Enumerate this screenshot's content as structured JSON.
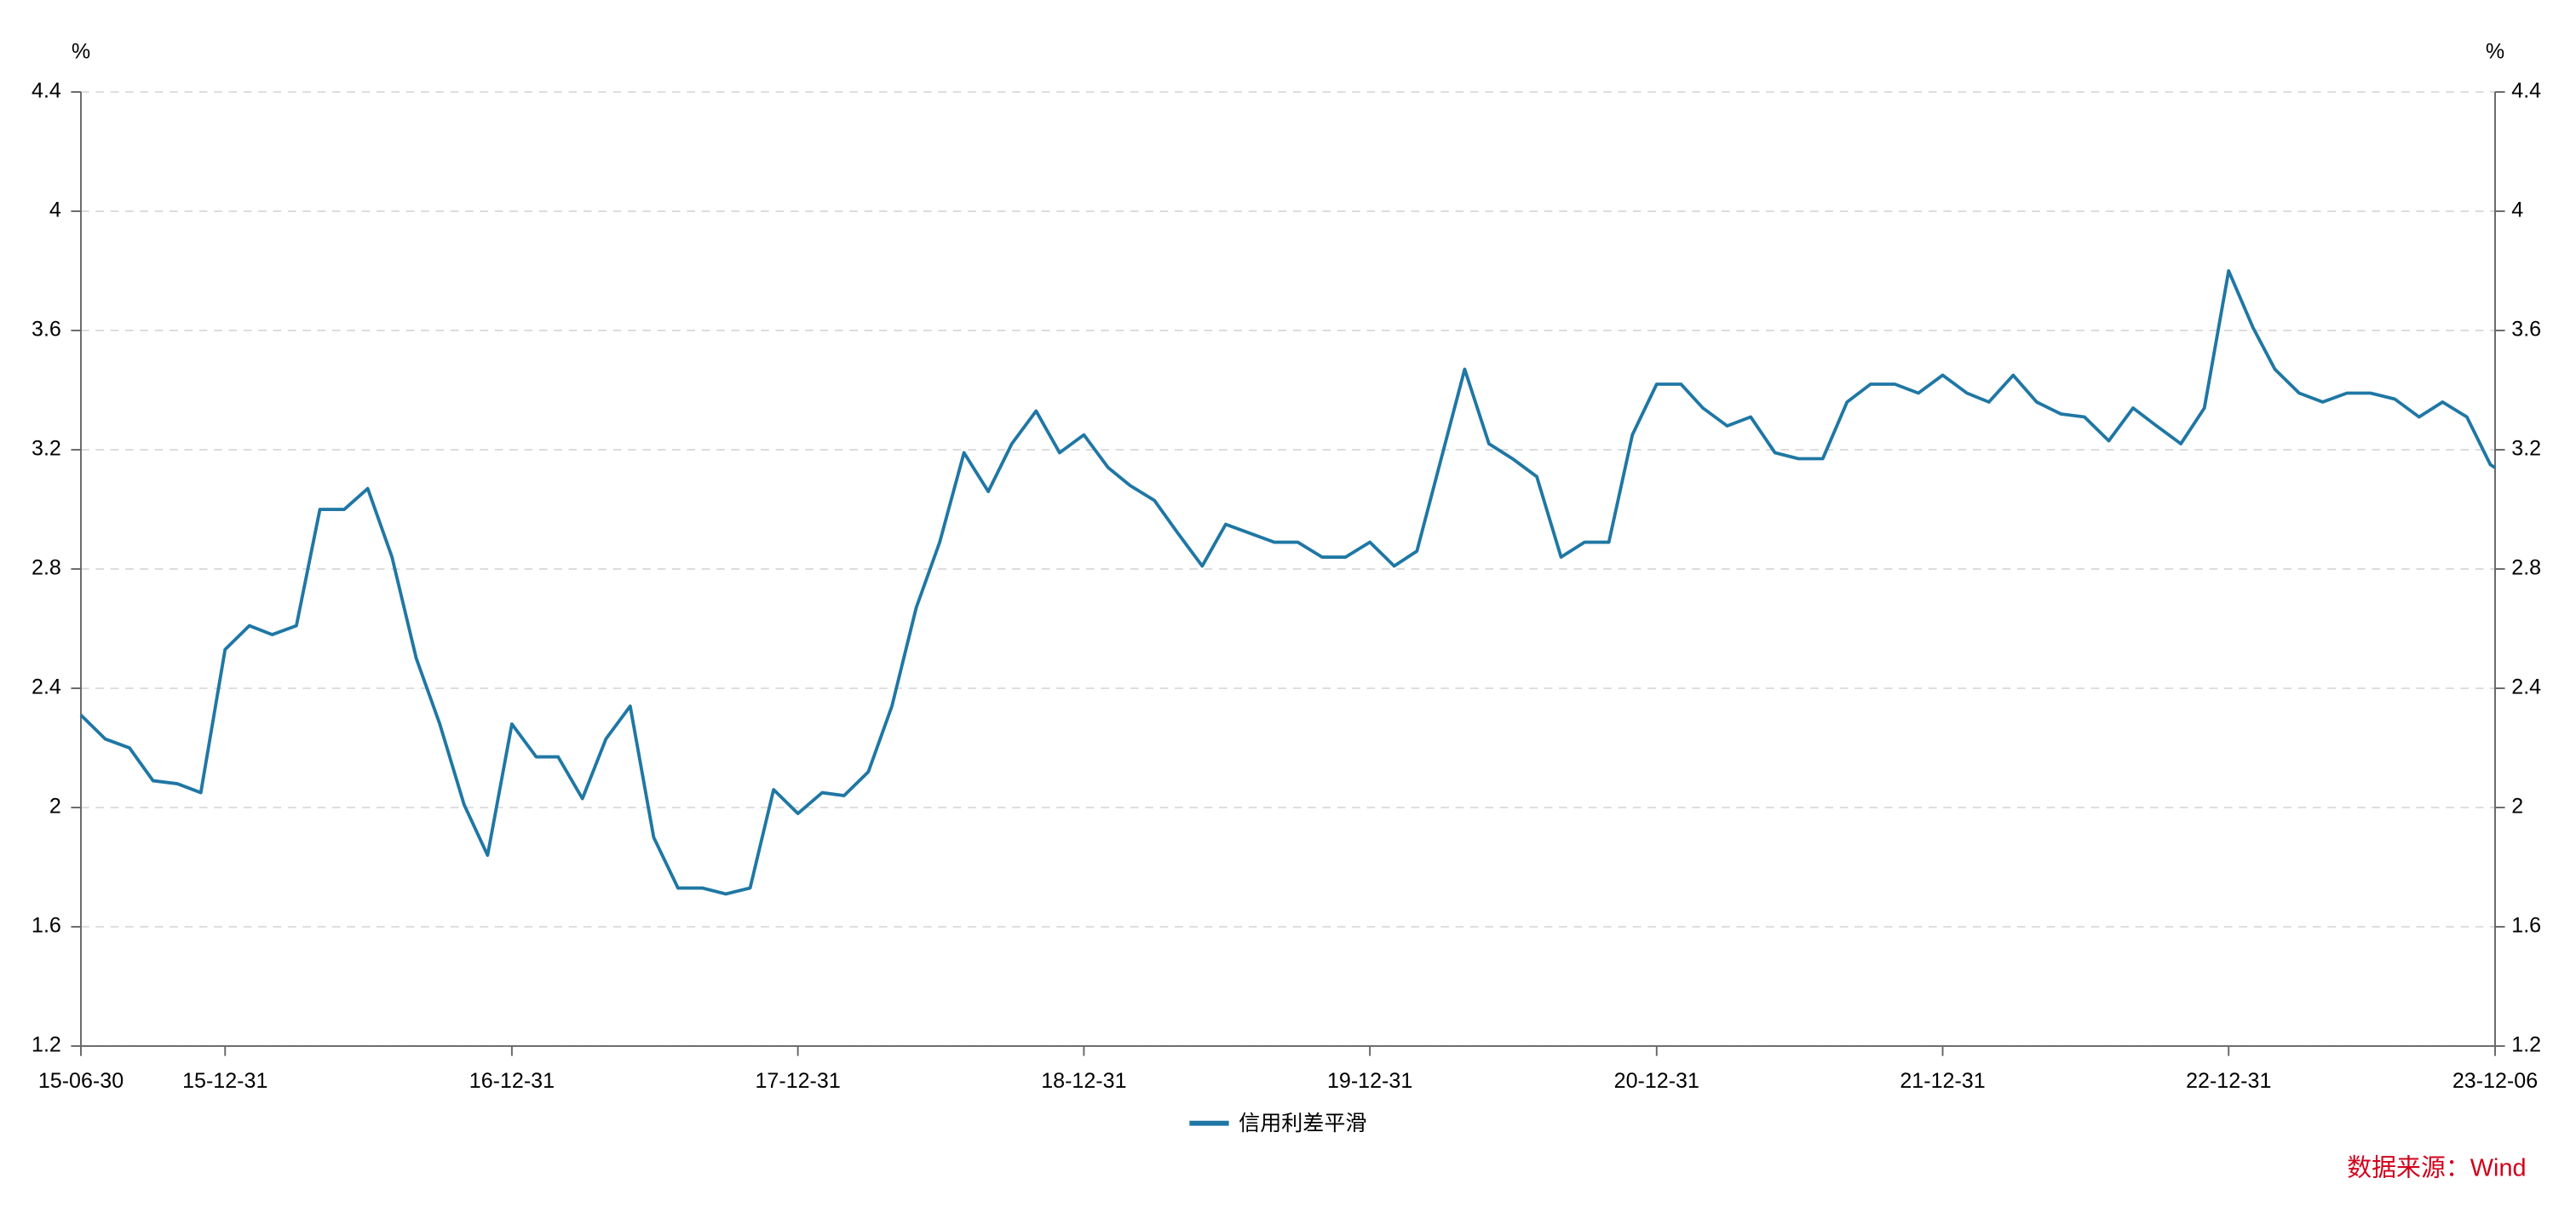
{
  "chart_data": {
    "type": "line",
    "y_unit": "%",
    "y2_unit": "%",
    "source": "数据来源：Wind",
    "xlim": [
      "15-06-30",
      "23-12-06"
    ],
    "xticks": [
      "15-06-30",
      "15-12-31",
      "16-12-31",
      "17-12-31",
      "18-12-31",
      "19-12-31",
      "20-12-31",
      "21-12-31",
      "22-12-31",
      "23-12-06"
    ],
    "ylim": [
      1.2,
      4.4
    ],
    "yticks": [
      1.2,
      1.6,
      2,
      2.4,
      2.8,
      3.2,
      3.6,
      4,
      4.4
    ],
    "y2lim": [
      1.2,
      4.4
    ],
    "y2ticks": [
      1.2,
      1.6,
      2,
      2.4,
      2.8,
      3.2,
      3.6,
      4,
      4.4
    ],
    "grid": true,
    "legend": "bottom",
    "x": [
      "15-06-30",
      "15-07-31",
      "15-08-31",
      "15-09-30",
      "15-10-31",
      "15-11-30",
      "15-12-31",
      "16-01-31",
      "16-02-29",
      "16-03-31",
      "16-04-30",
      "16-05-31",
      "16-06-30",
      "16-07-31",
      "16-08-31",
      "16-09-30",
      "16-10-31",
      "16-11-30",
      "16-12-31",
      "17-01-31",
      "17-02-28",
      "17-03-31",
      "17-04-30",
      "17-05-31",
      "17-06-30",
      "17-07-31",
      "17-08-31",
      "17-09-30",
      "17-10-31",
      "17-11-30",
      "17-12-31",
      "18-01-31",
      "18-02-28",
      "18-03-31",
      "18-04-30",
      "18-05-31",
      "18-06-30",
      "18-07-31",
      "18-08-31",
      "18-09-30",
      "18-10-31",
      "18-11-30",
      "18-12-31",
      "19-01-31",
      "19-02-28",
      "19-03-31",
      "19-04-30",
      "19-05-31",
      "19-06-30",
      "19-07-31",
      "19-08-31",
      "19-09-30",
      "19-10-31",
      "19-11-30",
      "19-12-31",
      "20-01-31",
      "20-02-29",
      "20-03-31",
      "20-04-30",
      "20-05-31",
      "20-06-30",
      "20-07-31",
      "20-08-31",
      "20-09-30",
      "20-10-31",
      "20-11-30",
      "20-12-31",
      "21-01-31",
      "21-02-28",
      "21-03-31",
      "21-04-30",
      "21-05-31",
      "21-06-30",
      "21-07-31",
      "21-08-31",
      "21-09-30",
      "21-10-31",
      "21-11-30",
      "21-12-31",
      "22-01-31",
      "22-02-28",
      "22-03-31",
      "22-04-30",
      "22-05-31",
      "22-06-30",
      "22-07-31",
      "22-08-31",
      "22-09-30",
      "22-10-31",
      "22-11-30",
      "22-12-31",
      "23-01-31",
      "23-02-28",
      "23-03-31",
      "23-04-30",
      "23-05-31",
      "23-06-30",
      "23-07-31",
      "23-08-31",
      "23-09-30",
      "23-10-31",
      "23-11-30",
      "23-12-06"
    ],
    "series": [
      {
        "name": "信用利差平滑",
        "color": "#1f77a4",
        "values": [
          2.31,
          2.23,
          2.2,
          2.09,
          2.08,
          2.05,
          2.53,
          2.61,
          2.58,
          2.61,
          3.0,
          3.0,
          3.07,
          2.84,
          2.5,
          2.28,
          2.01,
          1.84,
          2.28,
          2.17,
          2.17,
          2.03,
          2.23,
          2.34,
          1.9,
          1.73,
          1.73,
          1.71,
          1.73,
          2.06,
          1.98,
          2.05,
          2.04,
          2.12,
          2.34,
          2.67,
          2.89,
          3.19,
          3.06,
          3.22,
          3.33,
          3.19,
          3.25,
          3.14,
          3.08,
          3.03,
          2.92,
          2.81,
          2.95,
          2.92,
          2.89,
          2.89,
          2.84,
          2.84,
          2.89,
          2.81,
          2.86,
          3.17,
          3.47,
          3.22,
          3.17,
          3.11,
          2.84,
          2.89,
          2.89,
          3.25,
          3.42,
          3.42,
          3.34,
          3.28,
          3.31,
          3.19,
          3.17,
          3.17,
          3.36,
          3.42,
          3.42,
          3.39,
          3.45,
          3.39,
          3.36,
          3.45,
          3.36,
          3.32,
          3.31,
          3.23,
          3.34,
          3.28,
          3.22,
          3.34,
          3.8,
          3.61,
          3.47,
          3.39,
          3.36,
          3.39,
          3.39,
          3.37,
          3.31,
          3.36,
          3.31,
          3.15,
          3.14
        ]
      }
    ]
  }
}
